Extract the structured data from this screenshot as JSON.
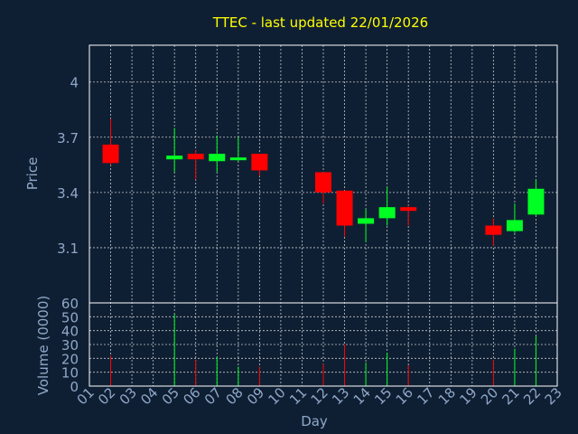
{
  "colors": {
    "background": "#0f1f33",
    "title": "#ffff00",
    "axis_text": "#8fa8c8",
    "grid": "#ffffff",
    "up": "#00ff22",
    "down": "#ff0000",
    "frame": "#ffffff"
  },
  "chart_data": [
    {
      "type": "candlestick",
      "title": "TTEC - last updated 22/01/2026",
      "ylabel": "Price",
      "ylim": [
        2.8,
        4.2
      ],
      "yticks": [
        "3.1",
        "3.4",
        "3.7",
        "4"
      ],
      "grid": true,
      "candles": [
        {
          "day": 2,
          "open": 3.66,
          "high": 3.8,
          "low": 3.55,
          "close": 3.56
        },
        {
          "day": 5,
          "open": 3.58,
          "high": 3.75,
          "low": 3.51,
          "close": 3.6
        },
        {
          "day": 6,
          "open": 3.61,
          "high": 3.63,
          "low": 3.47,
          "close": 3.58
        },
        {
          "day": 7,
          "open": 3.57,
          "high": 3.71,
          "low": 3.51,
          "close": 3.61
        },
        {
          "day": 8,
          "open": 3.58,
          "high": 3.7,
          "low": 3.57,
          "close": 3.59
        },
        {
          "day": 9,
          "open": 3.61,
          "high": 3.61,
          "low": 3.49,
          "close": 3.52
        },
        {
          "day": 12,
          "open": 3.51,
          "high": 3.51,
          "low": 3.34,
          "close": 3.4
        },
        {
          "day": 13,
          "open": 3.41,
          "high": 3.41,
          "low": 3.16,
          "close": 3.22
        },
        {
          "day": 14,
          "open": 3.23,
          "high": 3.31,
          "low": 3.13,
          "close": 3.26
        },
        {
          "day": 15,
          "open": 3.26,
          "high": 3.43,
          "low": 3.22,
          "close": 3.32
        },
        {
          "day": 16,
          "open": 3.32,
          "high": 3.33,
          "low": 3.22,
          "close": 3.3
        },
        {
          "day": 20,
          "open": 3.22,
          "high": 3.26,
          "low": 3.11,
          "close": 3.17
        },
        {
          "day": 21,
          "open": 3.19,
          "high": 3.34,
          "low": 3.18,
          "close": 3.25
        },
        {
          "day": 22,
          "open": 3.28,
          "high": 3.47,
          "low": 3.27,
          "close": 3.42
        }
      ]
    },
    {
      "type": "bar",
      "ylabel": "Volume (0000)",
      "xlabel": "Day",
      "ylim": [
        0,
        60
      ],
      "yticks": [
        "0",
        "10",
        "20",
        "30",
        "40",
        "50",
        "60"
      ],
      "xticks": [
        "01",
        "02",
        "03",
        "04",
        "05",
        "06",
        "07",
        "08",
        "09",
        "10",
        "11",
        "12",
        "13",
        "14",
        "15",
        "16",
        "17",
        "18",
        "19",
        "20",
        "21",
        "22",
        "23"
      ],
      "grid": true,
      "bars": [
        {
          "day": 2,
          "value": 22,
          "dir": "down"
        },
        {
          "day": 5,
          "value": 52,
          "dir": "up"
        },
        {
          "day": 6,
          "value": 19,
          "dir": "down"
        },
        {
          "day": 7,
          "value": 21,
          "dir": "up"
        },
        {
          "day": 8,
          "value": 14,
          "dir": "up"
        },
        {
          "day": 9,
          "value": 14,
          "dir": "down"
        },
        {
          "day": 12,
          "value": 16,
          "dir": "down"
        },
        {
          "day": 13,
          "value": 30,
          "dir": "down"
        },
        {
          "day": 14,
          "value": 17,
          "dir": "up"
        },
        {
          "day": 15,
          "value": 24,
          "dir": "up"
        },
        {
          "day": 16,
          "value": 15,
          "dir": "down"
        },
        {
          "day": 20,
          "value": 19,
          "dir": "down"
        },
        {
          "day": 21,
          "value": 27,
          "dir": "up"
        },
        {
          "day": 22,
          "value": 36,
          "dir": "up"
        }
      ]
    }
  ]
}
